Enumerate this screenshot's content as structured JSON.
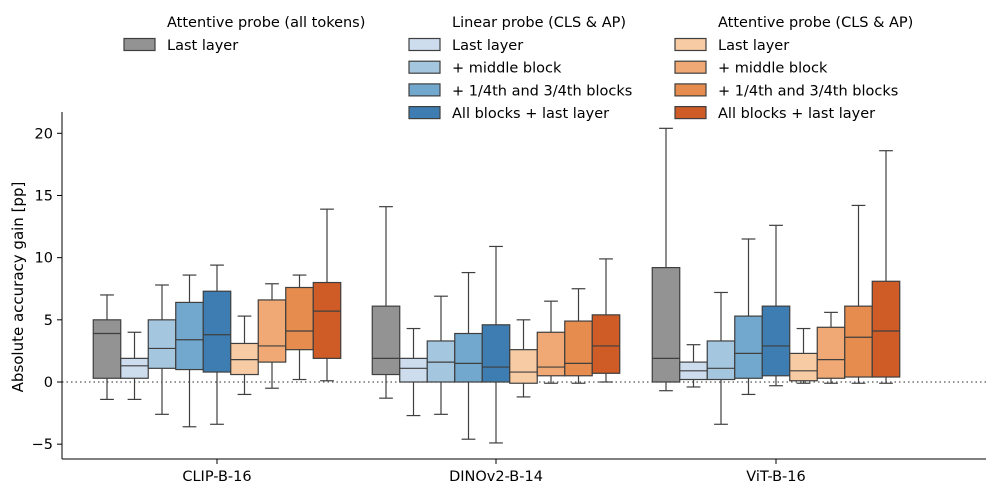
{
  "chart_data": {
    "type": "boxplot",
    "ylabel": "Absolute accuracy gain [pp]",
    "xlabel": "",
    "ylim": [
      -6.2,
      21.8
    ],
    "yticks": [
      -5,
      0,
      5,
      10,
      15,
      20
    ],
    "ytick_labels": [
      "−5",
      "0",
      "5",
      "10",
      "15",
      "20"
    ],
    "reference_line": {
      "y": 0,
      "style": "dotted"
    },
    "categories": [
      "CLIP-B-16",
      "DINOv2-B-14",
      "ViT-B-16"
    ],
    "legend_groups": [
      {
        "title": "Attentive probe (all tokens)",
        "entries": [
          0
        ]
      },
      {
        "title": "Linear probe (CLS & AP)",
        "entries": [
          1,
          2,
          3,
          4
        ]
      },
      {
        "title": "Attentive probe (CLS & AP)",
        "entries": [
          5,
          6,
          7,
          8
        ]
      }
    ],
    "series": [
      {
        "name": "Last layer",
        "color": "#939393",
        "boxes": [
          {
            "whislo": -1.4,
            "q1": 0.3,
            "med": 3.9,
            "q3": 5.0,
            "whishi": 7.0
          },
          {
            "whislo": -1.3,
            "q1": 0.6,
            "med": 1.9,
            "q3": 6.1,
            "whishi": 14.1
          },
          {
            "whislo": -0.7,
            "q1": 0.0,
            "med": 1.9,
            "q3": 9.2,
            "whishi": 20.4
          }
        ]
      },
      {
        "name": "Last layer",
        "color": "#cdddee",
        "boxes": [
          {
            "whislo": -1.4,
            "q1": 0.3,
            "med": 1.3,
            "q3": 1.9,
            "whishi": 4.0
          },
          {
            "whislo": -2.7,
            "q1": 0.0,
            "med": 1.1,
            "q3": 1.9,
            "whishi": 4.3
          },
          {
            "whislo": -0.4,
            "q1": 0.2,
            "med": 0.9,
            "q3": 1.6,
            "whishi": 3.0
          }
        ]
      },
      {
        "name": "+ middle block",
        "color": "#a5c6df",
        "boxes": [
          {
            "whislo": -2.6,
            "q1": 1.1,
            "med": 2.7,
            "q3": 5.0,
            "whishi": 7.8
          },
          {
            "whislo": -2.6,
            "q1": 0.0,
            "med": 1.6,
            "q3": 3.3,
            "whishi": 6.9
          },
          {
            "whislo": -3.4,
            "q1": 0.2,
            "med": 1.1,
            "q3": 3.3,
            "whishi": 7.2
          }
        ]
      },
      {
        "name": "+ 1/4th and 3/4th blocks",
        "color": "#72a8cd",
        "boxes": [
          {
            "whislo": -3.6,
            "q1": 1.0,
            "med": 3.4,
            "q3": 6.4,
            "whishi": 8.6
          },
          {
            "whislo": -4.6,
            "q1": 0.0,
            "med": 1.5,
            "q3": 3.9,
            "whishi": 8.8
          },
          {
            "whislo": -1.0,
            "q1": 0.3,
            "med": 2.3,
            "q3": 5.3,
            "whishi": 11.5
          }
        ]
      },
      {
        "name": "All blocks + last layer",
        "color": "#3e7db1",
        "boxes": [
          {
            "whislo": -3.4,
            "q1": 0.8,
            "med": 3.8,
            "q3": 7.3,
            "whishi": 9.4
          },
          {
            "whislo": -4.9,
            "q1": 0.0,
            "med": 1.2,
            "q3": 4.6,
            "whishi": 10.9
          },
          {
            "whislo": -0.3,
            "q1": 0.5,
            "med": 2.9,
            "q3": 6.1,
            "whishi": 12.6
          }
        ]
      },
      {
        "name": "Last layer",
        "color": "#f7cba4",
        "boxes": [
          {
            "whislo": -1.0,
            "q1": 0.6,
            "med": 1.8,
            "q3": 3.1,
            "whishi": 5.3
          },
          {
            "whislo": -1.2,
            "q1": -0.1,
            "med": 0.8,
            "q3": 2.6,
            "whishi": 5.0
          },
          {
            "whislo": -0.1,
            "q1": 0.1,
            "med": 0.9,
            "q3": 2.3,
            "whishi": 4.3
          }
        ]
      },
      {
        "name": "+ middle block",
        "color": "#f0a974",
        "boxes": [
          {
            "whislo": -0.5,
            "q1": 1.6,
            "med": 2.9,
            "q3": 6.6,
            "whishi": 7.9
          },
          {
            "whislo": -0.1,
            "q1": 0.5,
            "med": 1.2,
            "q3": 4.0,
            "whishi": 6.5
          },
          {
            "whislo": -0.1,
            "q1": 0.3,
            "med": 1.8,
            "q3": 4.4,
            "whishi": 5.6
          }
        ]
      },
      {
        "name": "+ 1/4th and 3/4th blocks",
        "color": "#e58c4e",
        "boxes": [
          {
            "whislo": 0.2,
            "q1": 2.6,
            "med": 4.1,
            "q3": 7.6,
            "whishi": 8.6
          },
          {
            "whislo": -0.1,
            "q1": 0.5,
            "med": 1.5,
            "q3": 4.9,
            "whishi": 7.5
          },
          {
            "whislo": -0.1,
            "q1": 0.4,
            "med": 3.6,
            "q3": 6.1,
            "whishi": 14.2
          }
        ]
      },
      {
        "name": "All blocks + last layer",
        "color": "#cf5b27",
        "boxes": [
          {
            "whislo": 0.1,
            "q1": 1.9,
            "med": 5.7,
            "q3": 8.0,
            "whishi": 13.9
          },
          {
            "whislo": 0.0,
            "q1": 0.7,
            "med": 2.9,
            "q3": 5.4,
            "whishi": 9.9
          },
          {
            "whislo": -0.1,
            "q1": 0.4,
            "med": 4.1,
            "q3": 8.1,
            "whishi": 18.6
          }
        ]
      }
    ]
  }
}
